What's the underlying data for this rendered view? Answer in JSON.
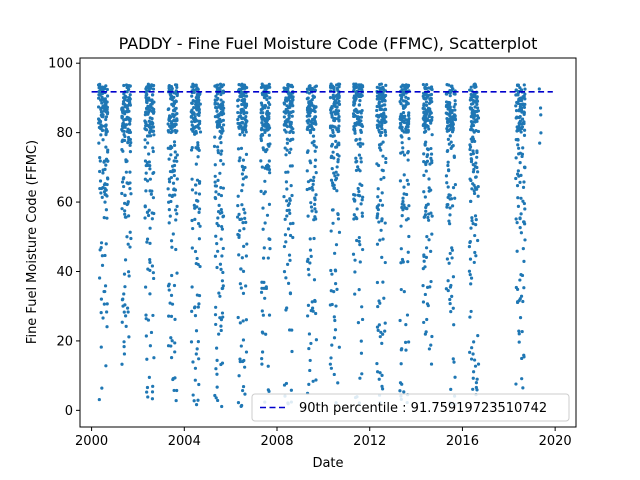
{
  "chart_data": {
    "type": "scatter",
    "title": "PADDY - Fine Fuel Moisture Code (FFMC), Scatterplot",
    "xlabel": "Date",
    "ylabel": "Fine Fuel Moisture Code (FFMC)",
    "xlim": [
      1999.5,
      2020.9
    ],
    "ylim": [
      -4.8,
      101.5
    ],
    "x_ticks": [
      2000,
      2004,
      2008,
      2012,
      2016,
      2020
    ],
    "x_tick_labels": [
      "2000",
      "2004",
      "2008",
      "2012",
      "2016",
      "2020"
    ],
    "y_ticks": [
      0,
      20,
      40,
      60,
      80,
      100
    ],
    "y_tick_labels": [
      "0",
      "20",
      "40",
      "60",
      "80",
      "100"
    ],
    "grid": false,
    "legend": {
      "placement": "lower-right",
      "entries": [
        {
          "label": "90th percentile : 91.75919723510742",
          "style": "dashed-line",
          "color": "#0000cc"
        }
      ]
    },
    "reference_line": {
      "y": 91.75919723510742,
      "x_range": [
        2000.0,
        2019.9
      ]
    },
    "series_color": "#1f77b4",
    "seasons": [
      {
        "x_start": 2000.3,
        "x_end": 2000.7
      },
      {
        "x_start": 2001.3,
        "x_end": 2001.7
      },
      {
        "x_start": 2002.3,
        "x_end": 2002.7
      },
      {
        "x_start": 2003.3,
        "x_end": 2003.7
      },
      {
        "x_start": 2004.3,
        "x_end": 2004.7
      },
      {
        "x_start": 2005.3,
        "x_end": 2005.7
      },
      {
        "x_start": 2006.3,
        "x_end": 2006.7
      },
      {
        "x_start": 2007.3,
        "x_end": 2007.7
      },
      {
        "x_start": 2008.3,
        "x_end": 2008.7
      },
      {
        "x_start": 2009.3,
        "x_end": 2009.7
      },
      {
        "x_start": 2010.3,
        "x_end": 2010.7
      },
      {
        "x_start": 2011.3,
        "x_end": 2011.7
      },
      {
        "x_start": 2012.3,
        "x_end": 2012.7
      },
      {
        "x_start": 2013.3,
        "x_end": 2013.7
      },
      {
        "x_start": 2014.3,
        "x_end": 2014.7
      },
      {
        "x_start": 2015.3,
        "x_end": 2015.7
      },
      {
        "x_start": 2016.3,
        "x_end": 2016.7
      },
      {
        "x_start": 2018.3,
        "x_end": 2018.7
      },
      {
        "x_start": 2019.3,
        "x_end": 2019.4
      }
    ]
  }
}
